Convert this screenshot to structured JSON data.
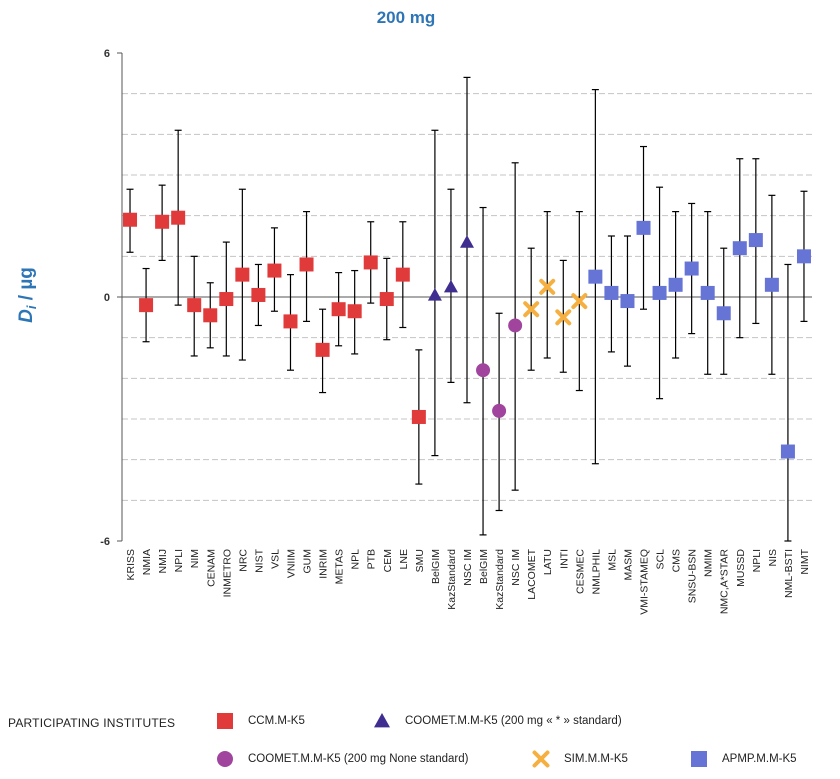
{
  "chart_data": {
    "type": "scatter",
    "title": "200 mg",
    "ylabel_main": "D",
    "ylabel_sub": "i",
    "ylabel_unit": " / µg",
    "ylim": [
      -6,
      6
    ],
    "y_ticks": [
      "6",
      "0",
      "-6"
    ],
    "grid": "dashed horizontal",
    "legend_heading": "PARTICIPATING INSTITUTES",
    "legend_placement": "bottom",
    "series": [
      {
        "name": "CCM.M-K5",
        "marker": "square",
        "color": "#E03A3A"
      },
      {
        "name": "COOMET.M.M-K5 (200 mg « * » standard)",
        "marker": "triangle",
        "color": "#3F2E8F"
      },
      {
        "name": "COOMET.M.M-K5 (200 mg None standard)",
        "marker": "circle",
        "color": "#A0449E"
      },
      {
        "name": "SIM.M.M-K5",
        "marker": "cross",
        "color": "#F5B041"
      },
      {
        "name": "APMP.M.M-K5",
        "marker": "square",
        "color": "#6674D6"
      }
    ],
    "points": [
      {
        "label": "KRISS",
        "series": 0,
        "y": 1.9,
        "lo": 1.1,
        "hi": 2.65
      },
      {
        "label": "NMIA",
        "series": 0,
        "y": -0.2,
        "lo": -1.1,
        "hi": 0.7
      },
      {
        "label": "NMIJ",
        "series": 0,
        "y": 1.85,
        "lo": 0.9,
        "hi": 2.75
      },
      {
        "label": "NPLI",
        "series": 0,
        "y": 1.95,
        "lo": -0.2,
        "hi": 4.1
      },
      {
        "label": "NIM",
        "series": 0,
        "y": -0.2,
        "lo": -1.45,
        "hi": 1.0
      },
      {
        "label": "CENAM",
        "series": 0,
        "y": -0.45,
        "lo": -1.25,
        "hi": 0.35
      },
      {
        "label": "INMETRO",
        "series": 0,
        "y": -0.05,
        "lo": -1.45,
        "hi": 1.35
      },
      {
        "label": "NRC",
        "series": 0,
        "y": 0.55,
        "lo": -1.55,
        "hi": 2.65
      },
      {
        "label": "NIST",
        "series": 0,
        "y": 0.05,
        "lo": -0.7,
        "hi": 0.8
      },
      {
        "label": "VSL",
        "series": 0,
        "y": 0.65,
        "lo": -0.35,
        "hi": 1.7
      },
      {
        "label": "VNIIM",
        "series": 0,
        "y": -0.6,
        "lo": -1.8,
        "hi": 0.55
      },
      {
        "label": "GUM",
        "series": 0,
        "y": 0.8,
        "lo": -0.6,
        "hi": 2.1
      },
      {
        "label": "INRIM",
        "series": 0,
        "y": -1.3,
        "lo": -2.35,
        "hi": -0.3
      },
      {
        "label": "METAS",
        "series": 0,
        "y": -0.3,
        "lo": -1.2,
        "hi": 0.6
      },
      {
        "label": "NPL",
        "series": 0,
        "y": -0.35,
        "lo": -1.4,
        "hi": 0.65
      },
      {
        "label": "PTB",
        "series": 0,
        "y": 0.85,
        "lo": -0.15,
        "hi": 1.85
      },
      {
        "label": "CEM",
        "series": 0,
        "y": -0.05,
        "lo": -1.05,
        "hi": 0.95
      },
      {
        "label": "LNE",
        "series": 0,
        "y": 0.55,
        "lo": -0.75,
        "hi": 1.85
      },
      {
        "label": "SMU",
        "series": 0,
        "y": -2.95,
        "lo": -4.6,
        "hi": -1.3
      },
      {
        "label": "BelGIM",
        "series": 1,
        "y": 0.05,
        "lo": -3.9,
        "hi": 4.1
      },
      {
        "label": "KazStandard",
        "series": 1,
        "y": 0.25,
        "lo": -2.1,
        "hi": 2.65
      },
      {
        "label": "NSC IM",
        "series": 1,
        "y": 1.35,
        "lo": -2.6,
        "hi": 5.4
      },
      {
        "label": "BelGIM",
        "series": 2,
        "y": -1.8,
        "lo": -5.85,
        "hi": 2.2
      },
      {
        "label": "KazStandard",
        "series": 2,
        "y": -2.8,
        "lo": -5.25,
        "hi": -0.4
      },
      {
        "label": "NSC IM",
        "series": 2,
        "y": -0.7,
        "lo": -4.75,
        "hi": 3.3
      },
      {
        "label": "LACOMET",
        "series": 3,
        "y": -0.3,
        "lo": -1.8,
        "hi": 1.2
      },
      {
        "label": "LATU",
        "series": 3,
        "y": 0.25,
        "lo": -1.5,
        "hi": 2.1
      },
      {
        "label": "INTI",
        "series": 3,
        "y": -0.5,
        "lo": -1.85,
        "hi": 0.9
      },
      {
        "label": "CESMEC",
        "series": 3,
        "y": -0.1,
        "lo": -2.3,
        "hi": 2.1
      },
      {
        "label": "NMLPHIL",
        "series": 4,
        "y": 0.5,
        "lo": -4.1,
        "hi": 5.1
      },
      {
        "label": "MSL",
        "series": 4,
        "y": 0.1,
        "lo": -1.35,
        "hi": 1.5
      },
      {
        "label": "MASM",
        "series": 4,
        "y": -0.1,
        "lo": -1.7,
        "hi": 1.5
      },
      {
        "label": "VMI-STAMEQ",
        "series": 4,
        "y": 1.7,
        "lo": -0.3,
        "hi": 3.7
      },
      {
        "label": "SCL",
        "series": 4,
        "y": 0.1,
        "lo": -2.5,
        "hi": 2.7
      },
      {
        "label": "CMS",
        "series": 4,
        "y": 0.3,
        "lo": -1.5,
        "hi": 2.1
      },
      {
        "label": "SNSU-BSN",
        "series": 4,
        "y": 0.7,
        "lo": -0.9,
        "hi": 2.3
      },
      {
        "label": "NMIM",
        "series": 4,
        "y": 0.1,
        "lo": -1.9,
        "hi": 2.1
      },
      {
        "label": "NMC,A*STAR",
        "series": 4,
        "y": -0.4,
        "lo": -1.9,
        "hi": 1.2
      },
      {
        "label": "MUSSD",
        "series": 4,
        "y": 1.2,
        "lo": -1.0,
        "hi": 3.4
      },
      {
        "label": "NPLI",
        "series": 4,
        "y": 1.4,
        "lo": -0.65,
        "hi": 3.4
      },
      {
        "label": "NIS",
        "series": 4,
        "y": 0.3,
        "lo": -1.9,
        "hi": 2.5
      },
      {
        "label": "NML-BSTI",
        "series": 4,
        "y": -3.8,
        "lo": -6.0,
        "hi": 0.8
      },
      {
        "label": "NIMT",
        "series": 4,
        "y": 1.0,
        "lo": -0.6,
        "hi": 2.6
      }
    ]
  }
}
